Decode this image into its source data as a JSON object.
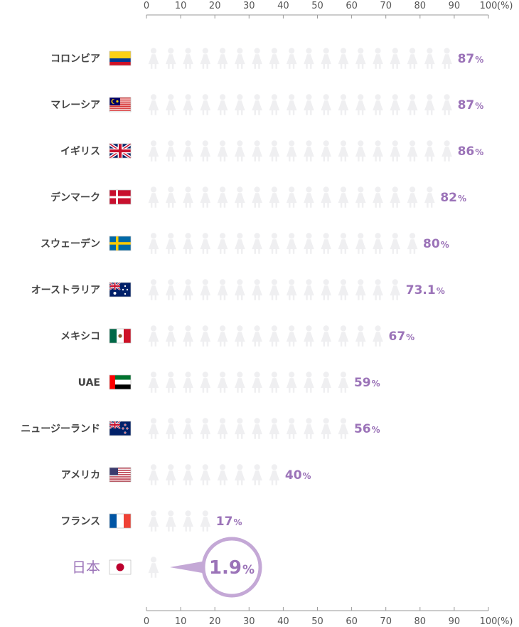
{
  "chart_data": {
    "type": "bar",
    "x_ticks": [
      "0",
      "10",
      "20",
      "30",
      "40",
      "50",
      "60",
      "70",
      "80",
      "90",
      "100"
    ],
    "x_unit": "(%)",
    "xlim": [
      0,
      100
    ],
    "countries": [
      {
        "name": "コロンビア",
        "value": 87,
        "value_label": "87",
        "flag": "colombia"
      },
      {
        "name": "マレーシア",
        "value": 87,
        "value_label": "87",
        "flag": "malaysia"
      },
      {
        "name": "イギリス",
        "value": 86,
        "value_label": "86",
        "flag": "uk"
      },
      {
        "name": "デンマーク",
        "value": 82,
        "value_label": "82",
        "flag": "denmark"
      },
      {
        "name": "スウェーデン",
        "value": 80,
        "value_label": "80",
        "flag": "sweden"
      },
      {
        "name": "オーストラリア",
        "value": 73.1,
        "value_label": "73.1",
        "flag": "australia"
      },
      {
        "name": "メキシコ",
        "value": 67,
        "value_label": "67",
        "flag": "mexico"
      },
      {
        "name": "UAE",
        "value": 59,
        "value_label": "59",
        "flag": "uae"
      },
      {
        "name": "ニュージーランド",
        "value": 56,
        "value_label": "56",
        "flag": "newzealand"
      },
      {
        "name": "アメリカ",
        "value": 40,
        "value_label": "40",
        "flag": "usa"
      },
      {
        "name": "フランス",
        "value": 17,
        "value_label": "17",
        "flag": "france"
      },
      {
        "name": "日本",
        "value": 1.9,
        "value_label": "1.9",
        "flag": "japan",
        "highlight": true
      }
    ],
    "unit_symbol": "%",
    "colors": {
      "icon_filled": "#f5b8d6",
      "icon_empty": "#efeff1",
      "value_text": "#9b73b8",
      "japan_icon": "#9b73b8",
      "callout_ring": "#c4a8d6"
    }
  }
}
